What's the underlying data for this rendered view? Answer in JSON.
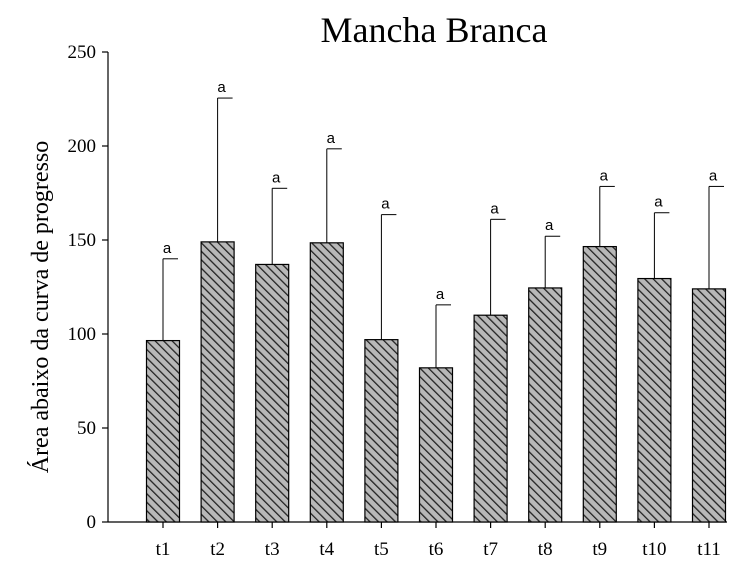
{
  "chart_data": {
    "type": "bar",
    "title": "Mancha Branca",
    "xlabel": "",
    "ylabel": "Área abaixo da curva de progresso",
    "ylim": [
      0,
      250
    ],
    "yticks": [
      0,
      50,
      100,
      150,
      200,
      250
    ],
    "categories": [
      "t1",
      "t2",
      "t3",
      "t4",
      "t5",
      "t6",
      "t7",
      "t8",
      "t9",
      "t10",
      "t11"
    ],
    "values": [
      96.5,
      149,
      137,
      148.5,
      97,
      82,
      110,
      124.5,
      146.5,
      129.5,
      124
    ],
    "error_upper": [
      140,
      225.5,
      177.5,
      198.5,
      163.5,
      115.5,
      161,
      152,
      178.5,
      164.5,
      178.5
    ],
    "significance_labels": [
      "a",
      "a",
      "a",
      "a",
      "a",
      "a",
      "a",
      "a",
      "a",
      "a",
      "a"
    ],
    "bar_fill": "hatched gray",
    "colors": {
      "bar": "#b8b8b8",
      "hatch": "#222222",
      "axis": "#000000"
    },
    "grid": false,
    "legend": "none"
  }
}
